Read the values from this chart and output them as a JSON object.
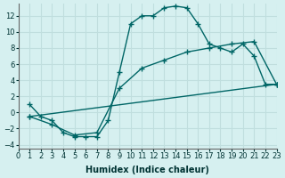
{
  "xlabel": "Humidex (Indice chaleur)",
  "ylabel": "",
  "xlim": [
    0,
    23
  ],
  "ylim": [
    -4.5,
    13.5
  ],
  "xticks": [
    0,
    1,
    2,
    3,
    4,
    5,
    6,
    7,
    8,
    9,
    10,
    11,
    12,
    13,
    14,
    15,
    16,
    17,
    18,
    19,
    20,
    21,
    22,
    23
  ],
  "yticks": [
    -4,
    -2,
    0,
    2,
    4,
    6,
    8,
    10,
    12
  ],
  "bg_color": "#d6f0f0",
  "line_color": "#006666",
  "grid_color": "#c0dede",
  "line1_x": [
    1,
    2,
    3,
    4,
    5,
    6,
    7,
    8,
    9,
    10,
    11,
    12,
    13,
    14,
    15,
    16,
    17,
    18,
    19,
    20,
    21,
    22,
    23
  ],
  "line1_y": [
    1,
    -0.5,
    -1,
    -2.5,
    -3,
    -3,
    -3,
    -1,
    5,
    11,
    12,
    12,
    13,
    13.2,
    13,
    11,
    8.5,
    8,
    7.5,
    8.5,
    7,
    3.5,
    3.5
  ],
  "line2_x": [
    1,
    3,
    5,
    7,
    9,
    11,
    13,
    15,
    17,
    19,
    21,
    23
  ],
  "line2_y": [
    -0.5,
    -1.5,
    -2.8,
    -2.5,
    3,
    5.5,
    6.5,
    7.5,
    8,
    8.5,
    8.8,
    3.5
  ],
  "line3_x": [
    1,
    23
  ],
  "line3_y": [
    -0.5,
    3.5
  ]
}
